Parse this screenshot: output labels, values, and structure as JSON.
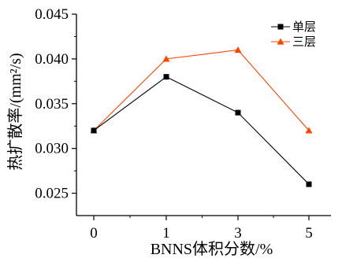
{
  "chart_data": {
    "type": "line",
    "title": "",
    "xlabel": "BNNS体积分数/%",
    "ylabel": "热扩散率/(mm²/s)",
    "categories": [
      "0",
      "1",
      "3",
      "5"
    ],
    "ylim": [
      0.0225,
      0.045
    ],
    "yticks": [
      "0.025",
      "0.030",
      "0.035",
      "0.040",
      "0.045"
    ],
    "grid": false,
    "legend_position": "top-right",
    "series": [
      {
        "name": "单层",
        "values": [
          0.032,
          0.038,
          0.034,
          0.026
        ],
        "color": "#000000",
        "marker": "square"
      },
      {
        "name": "三层",
        "values": [
          0.032,
          0.04,
          0.041,
          0.032
        ],
        "color": "#ff4500",
        "marker": "triangle"
      }
    ]
  }
}
